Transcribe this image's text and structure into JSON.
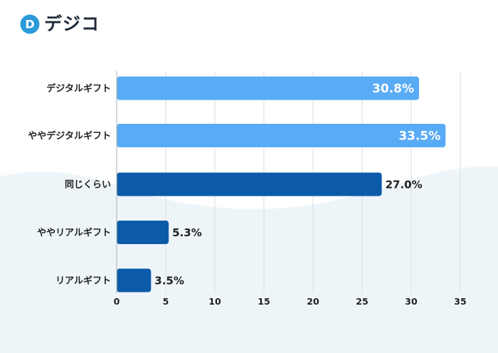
{
  "brand": {
    "name": "デジコ",
    "mark_letter": "D",
    "mark_icon": "digico-logo-icon"
  },
  "colors": {
    "light_bar": "#5aabf5",
    "dark_bar": "#0c5ba9",
    "grid": "#d9dde2",
    "axis": "#b7bcc3",
    "background_wave": "#eef5f9",
    "brand_blue": "#2a9ad8"
  },
  "chart_data": {
    "type": "bar",
    "orientation": "horizontal",
    "title": "",
    "xlabel": "",
    "ylabel": "",
    "categories": [
      "デジタルギフト",
      "ややデジタルギフト",
      "同じくらい",
      "ややリアルギフト",
      "リアルギフト"
    ],
    "values": [
      30.8,
      33.5,
      27.0,
      5.3,
      3.5
    ],
    "value_labels": [
      "30.8%",
      "33.5%",
      "27.0%",
      "5.3%",
      "3.5%"
    ],
    "bar_colors": [
      "#5aabf5",
      "#5aabf5",
      "#0c5ba9",
      "#0c5ba9",
      "#0c5ba9"
    ],
    "label_inside": [
      true,
      true,
      false,
      false,
      false
    ],
    "xlim": [
      0,
      35
    ],
    "xticks": [
      0,
      5,
      10,
      15,
      20,
      25,
      30,
      35
    ],
    "grid": true,
    "legend": "none"
  }
}
